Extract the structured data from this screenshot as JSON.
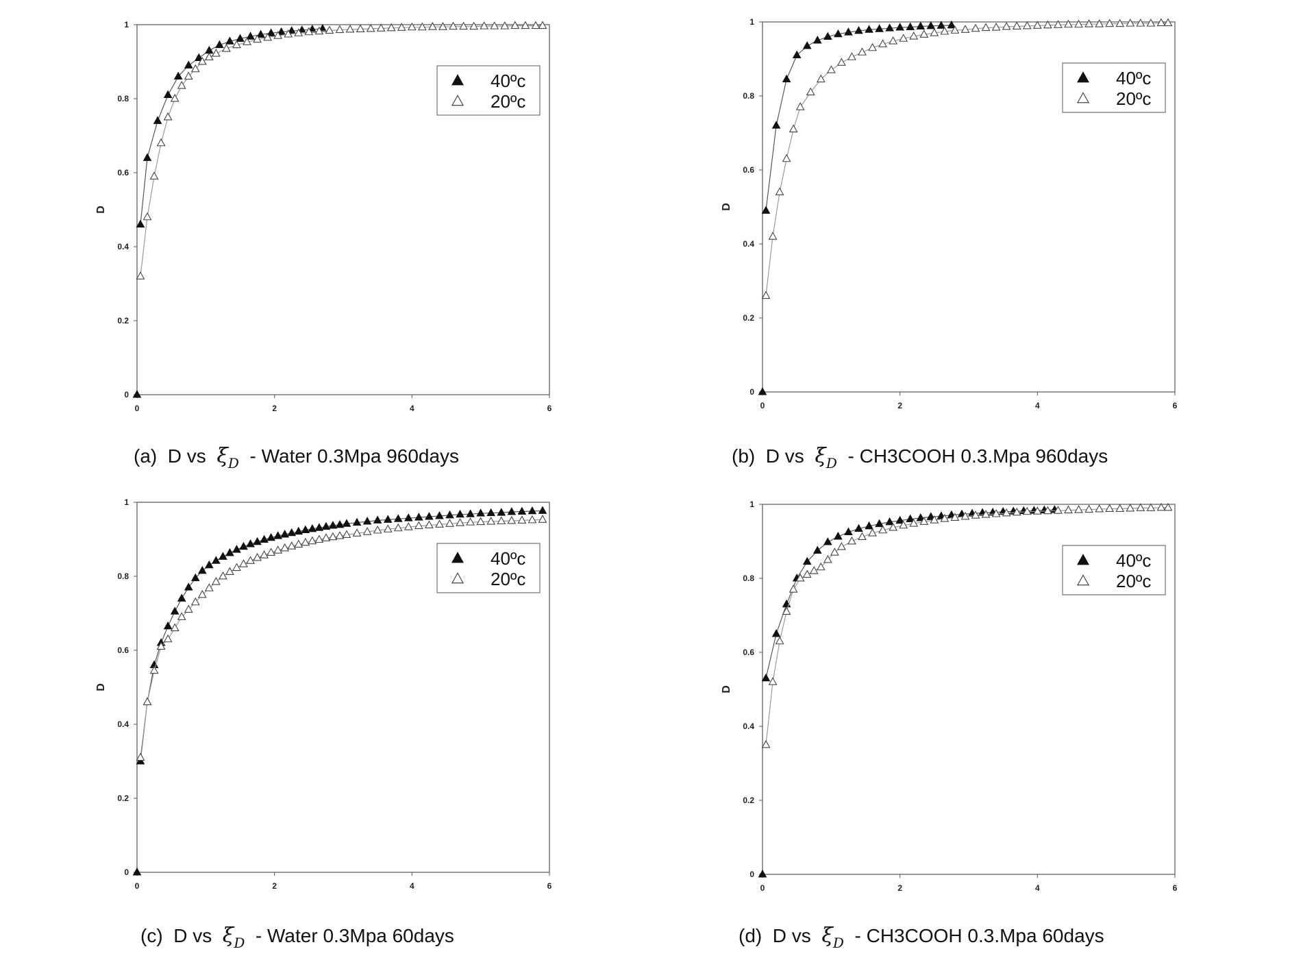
{
  "chart_data": [
    {
      "type": "scatter",
      "panel": "a",
      "caption": {
        "label": "(a)",
        "pre": "D vs",
        "symbol": "ξ",
        "subscript": "D",
        "post": "- Water 0.3Mpa 960days"
      },
      "ylabel": "D",
      "xlim": [
        0,
        6
      ],
      "ylim": [
        0,
        1
      ],
      "xticks": [
        "0",
        "2",
        "4",
        "6"
      ],
      "yticks": [
        "0",
        "0.2",
        "0.4",
        "0.6",
        "0.8",
        "1"
      ],
      "legend": {
        "position": "top-right",
        "entries": [
          "40ºc",
          "20ºc"
        ]
      },
      "series": [
        {
          "name": "40ºc",
          "marker": "filled-triangle",
          "x": [
            0,
            0.05,
            0.15,
            0.3,
            0.45,
            0.6,
            0.75,
            0.9,
            1.05,
            1.2,
            1.35,
            1.5,
            1.65,
            1.8,
            1.95,
            2.1,
            2.25,
            2.4,
            2.55,
            2.7
          ],
          "y": [
            0,
            0.46,
            0.64,
            0.74,
            0.81,
            0.86,
            0.89,
            0.91,
            0.93,
            0.945,
            0.955,
            0.962,
            0.968,
            0.973,
            0.977,
            0.98,
            0.983,
            0.985,
            0.987,
            0.989
          ]
        },
        {
          "name": "20ºc",
          "marker": "open-triangle",
          "x": [
            0.05,
            0.15,
            0.25,
            0.35,
            0.45,
            0.55,
            0.65,
            0.75,
            0.85,
            0.95,
            1.05,
            1.15,
            1.3,
            1.45,
            1.6,
            1.75,
            1.9,
            2.05,
            2.2,
            2.35,
            2.5,
            2.65,
            2.8,
            2.95,
            3.1,
            3.25,
            3.4,
            3.55,
            3.7,
            3.85,
            4.0,
            4.15,
            4.3,
            4.45,
            4.6,
            4.75,
            4.9,
            5.05,
            5.2,
            5.35,
            5.5,
            5.65,
            5.8,
            5.9
          ],
          "y": [
            0.32,
            0.48,
            0.59,
            0.68,
            0.75,
            0.8,
            0.835,
            0.86,
            0.88,
            0.9,
            0.912,
            0.922,
            0.935,
            0.945,
            0.953,
            0.96,
            0.965,
            0.97,
            0.974,
            0.977,
            0.98,
            0.982,
            0.984,
            0.986,
            0.987,
            0.988,
            0.989,
            0.99,
            0.991,
            0.992,
            0.993,
            0.993,
            0.994,
            0.994,
            0.995,
            0.995,
            0.995,
            0.996,
            0.996,
            0.996,
            0.997,
            0.997,
            0.997,
            0.997
          ]
        }
      ]
    },
    {
      "type": "scatter",
      "panel": "b",
      "caption": {
        "label": "(b)",
        "pre": "D vs",
        "symbol": "ξ",
        "subscript": "D",
        "post": "- CH3COOH 0.3.Mpa 960days"
      },
      "ylabel": "D",
      "xlim": [
        0,
        6
      ],
      "ylim": [
        0,
        1
      ],
      "xticks": [
        "0",
        "2",
        "4",
        "6"
      ],
      "yticks": [
        "0",
        "0.2",
        "0.4",
        "0.6",
        "0.8",
        "1"
      ],
      "legend": {
        "position": "top-right",
        "entries": [
          "40ºc",
          "20ºc"
        ]
      },
      "series": [
        {
          "name": "40ºc",
          "marker": "filled-triangle",
          "x": [
            0,
            0.05,
            0.2,
            0.35,
            0.5,
            0.65,
            0.8,
            0.95,
            1.1,
            1.25,
            1.4,
            1.55,
            1.7,
            1.85,
            2.0,
            2.15,
            2.3,
            2.45,
            2.6,
            2.75
          ],
          "y": [
            0,
            0.49,
            0.72,
            0.845,
            0.91,
            0.935,
            0.95,
            0.96,
            0.967,
            0.972,
            0.976,
            0.979,
            0.981,
            0.983,
            0.985,
            0.986,
            0.988,
            0.989,
            0.99,
            0.991
          ]
        },
        {
          "name": "20ºc",
          "marker": "open-triangle",
          "x": [
            0.05,
            0.15,
            0.25,
            0.35,
            0.45,
            0.55,
            0.7,
            0.85,
            1.0,
            1.15,
            1.3,
            1.45,
            1.6,
            1.75,
            1.9,
            2.05,
            2.2,
            2.35,
            2.5,
            2.65,
            2.8,
            2.95,
            3.1,
            3.25,
            3.4,
            3.55,
            3.7,
            3.85,
            4.0,
            4.15,
            4.3,
            4.45,
            4.6,
            4.75,
            4.9,
            5.05,
            5.2,
            5.35,
            5.5,
            5.65,
            5.8,
            5.9
          ],
          "y": [
            0.26,
            0.42,
            0.54,
            0.63,
            0.71,
            0.77,
            0.81,
            0.845,
            0.87,
            0.89,
            0.905,
            0.918,
            0.93,
            0.94,
            0.948,
            0.955,
            0.961,
            0.966,
            0.97,
            0.974,
            0.977,
            0.979,
            0.982,
            0.984,
            0.985,
            0.987,
            0.988,
            0.989,
            0.99,
            0.991,
            0.992,
            0.993,
            0.993,
            0.994,
            0.994,
            0.995,
            0.995,
            0.996,
            0.996,
            0.996,
            0.997,
            0.997
          ]
        }
      ]
    },
    {
      "type": "scatter",
      "panel": "c",
      "caption": {
        "label": "(c)",
        "pre": "D vs",
        "symbol": "ξ",
        "subscript": "D",
        "post": "- Water 0.3Mpa 60days"
      },
      "ylabel": "D",
      "xlim": [
        0,
        6
      ],
      "ylim": [
        0,
        1
      ],
      "xticks": [
        "0",
        "2",
        "4",
        "6"
      ],
      "yticks": [
        "0",
        "0.2",
        "0.4",
        "0.6",
        "0.8",
        "1"
      ],
      "legend": {
        "position": "top-right",
        "entries": [
          "40ºc",
          "20ºc"
        ]
      },
      "series": [
        {
          "name": "40ºc",
          "marker": "filled-triangle",
          "x": [
            0,
            0.05,
            0.15,
            0.25,
            0.35,
            0.45,
            0.55,
            0.65,
            0.75,
            0.85,
            0.95,
            1.05,
            1.15,
            1.25,
            1.35,
            1.45,
            1.55,
            1.65,
            1.75,
            1.85,
            1.95,
            2.05,
            2.15,
            2.25,
            2.35,
            2.45,
            2.55,
            2.65,
            2.75,
            2.85,
            2.95,
            3.05,
            3.2,
            3.35,
            3.5,
            3.65,
            3.8,
            3.95,
            4.1,
            4.25,
            4.4,
            4.55,
            4.7,
            4.85,
            5.0,
            5.15,
            5.3,
            5.45,
            5.6,
            5.75,
            5.9
          ],
          "y": [
            0,
            0.3,
            0.46,
            0.56,
            0.62,
            0.665,
            0.705,
            0.74,
            0.77,
            0.795,
            0.815,
            0.83,
            0.842,
            0.853,
            0.863,
            0.872,
            0.88,
            0.887,
            0.893,
            0.899,
            0.904,
            0.909,
            0.913,
            0.917,
            0.921,
            0.925,
            0.928,
            0.931,
            0.934,
            0.937,
            0.939,
            0.942,
            0.945,
            0.948,
            0.951,
            0.953,
            0.955,
            0.957,
            0.959,
            0.961,
            0.963,
            0.965,
            0.967,
            0.968,
            0.97,
            0.971,
            0.972,
            0.974,
            0.975,
            0.976,
            0.977
          ]
        },
        {
          "name": "20ºc",
          "marker": "open-triangle",
          "x": [
            0.05,
            0.15,
            0.25,
            0.35,
            0.45,
            0.55,
            0.65,
            0.75,
            0.85,
            0.95,
            1.05,
            1.15,
            1.25,
            1.35,
            1.45,
            1.55,
            1.65,
            1.75,
            1.85,
            1.95,
            2.05,
            2.15,
            2.25,
            2.35,
            2.45,
            2.55,
            2.65,
            2.75,
            2.85,
            2.95,
            3.05,
            3.2,
            3.35,
            3.5,
            3.65,
            3.8,
            3.95,
            4.1,
            4.25,
            4.4,
            4.55,
            4.7,
            4.85,
            5.0,
            5.15,
            5.3,
            5.45,
            5.6,
            5.75,
            5.9
          ],
          "y": [
            0.31,
            0.46,
            0.545,
            0.61,
            0.63,
            0.66,
            0.69,
            0.71,
            0.73,
            0.75,
            0.768,
            0.785,
            0.8,
            0.812,
            0.823,
            0.833,
            0.842,
            0.85,
            0.857,
            0.864,
            0.87,
            0.876,
            0.881,
            0.886,
            0.891,
            0.895,
            0.899,
            0.903,
            0.906,
            0.909,
            0.912,
            0.916,
            0.92,
            0.924,
            0.927,
            0.93,
            0.933,
            0.936,
            0.938,
            0.94,
            0.942,
            0.944,
            0.946,
            0.947,
            0.948,
            0.949,
            0.95,
            0.951,
            0.952,
            0.953
          ]
        }
      ]
    },
    {
      "type": "scatter",
      "panel": "d",
      "caption": {
        "label": "(d)",
        "pre": "D vs",
        "symbol": "ξ",
        "subscript": "D",
        "post": "- CH3COOH 0.3.Mpa 60days"
      },
      "ylabel": "D",
      "xlim": [
        0,
        6
      ],
      "ylim": [
        0,
        1
      ],
      "xticks": [
        "0",
        "2",
        "4",
        "6"
      ],
      "yticks": [
        "0",
        "0.2",
        "0.4",
        "0.6",
        "0.8",
        "1"
      ],
      "legend": {
        "position": "top-right",
        "entries": [
          "40ºc",
          "20ºc"
        ]
      },
      "series": [
        {
          "name": "40ºc",
          "marker": "filled-triangle",
          "x": [
            0,
            0.05,
            0.2,
            0.35,
            0.5,
            0.65,
            0.8,
            0.95,
            1.1,
            1.25,
            1.4,
            1.55,
            1.7,
            1.85,
            2.0,
            2.15,
            2.3,
            2.45,
            2.6,
            2.75,
            2.9,
            3.05,
            3.2,
            3.35,
            3.5,
            3.65,
            3.8,
            3.95,
            4.1,
            4.25
          ],
          "y": [
            0,
            0.53,
            0.65,
            0.73,
            0.8,
            0.845,
            0.875,
            0.898,
            0.913,
            0.925,
            0.934,
            0.941,
            0.947,
            0.952,
            0.956,
            0.96,
            0.963,
            0.966,
            0.968,
            0.971,
            0.973,
            0.975,
            0.977,
            0.978,
            0.98,
            0.981,
            0.982,
            0.983,
            0.984,
            0.985
          ]
        },
        {
          "name": "20ºc",
          "marker": "open-triangle",
          "x": [
            0.05,
            0.15,
            0.25,
            0.35,
            0.45,
            0.55,
            0.65,
            0.75,
            0.85,
            0.95,
            1.05,
            1.15,
            1.3,
            1.45,
            1.6,
            1.75,
            1.9,
            2.05,
            2.2,
            2.35,
            2.5,
            2.65,
            2.8,
            2.95,
            3.1,
            3.25,
            3.4,
            3.55,
            3.7,
            3.85,
            4.0,
            4.15,
            4.3,
            4.45,
            4.6,
            4.75,
            4.9,
            5.05,
            5.2,
            5.35,
            5.5,
            5.65,
            5.8,
            5.9
          ],
          "y": [
            0.35,
            0.52,
            0.63,
            0.71,
            0.77,
            0.8,
            0.81,
            0.82,
            0.83,
            0.85,
            0.87,
            0.885,
            0.9,
            0.912,
            0.922,
            0.93,
            0.937,
            0.943,
            0.948,
            0.953,
            0.957,
            0.961,
            0.964,
            0.967,
            0.97,
            0.972,
            0.974,
            0.976,
            0.978,
            0.98,
            0.981,
            0.982,
            0.983,
            0.984,
            0.985,
            0.986,
            0.987,
            0.988,
            0.988,
            0.989,
            0.99,
            0.99,
            0.991,
            0.991
          ]
        }
      ]
    }
  ]
}
